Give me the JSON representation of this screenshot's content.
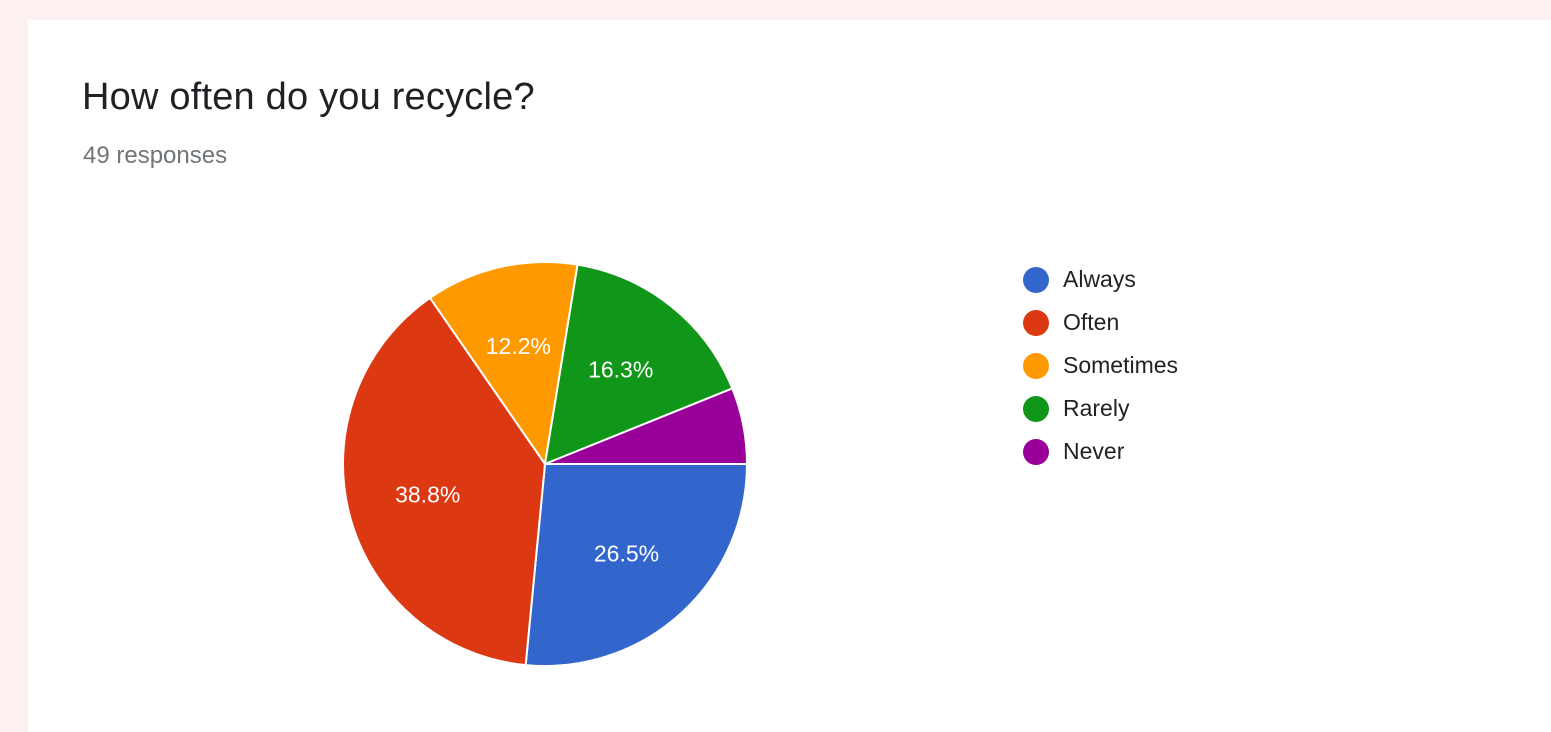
{
  "header": {
    "title": "How often do you recycle?",
    "subtitle": "49 responses"
  },
  "chart_data": {
    "type": "pie",
    "title": "How often do you recycle?",
    "subtitle": "49 responses",
    "categories": [
      "Always",
      "Often",
      "Sometimes",
      "Rarely",
      "Never"
    ],
    "values": [
      26.5,
      38.8,
      12.2,
      16.3,
      6.1
    ],
    "data_labels": [
      "26.5%",
      "38.8%",
      "12.2%",
      "16.3%",
      ""
    ],
    "colors": [
      "#3366cc",
      "#dc3912",
      "#ff9900",
      "#109618",
      "#990099"
    ],
    "start_angle": "3 o'clock, clockwise",
    "legend_position": "right"
  }
}
